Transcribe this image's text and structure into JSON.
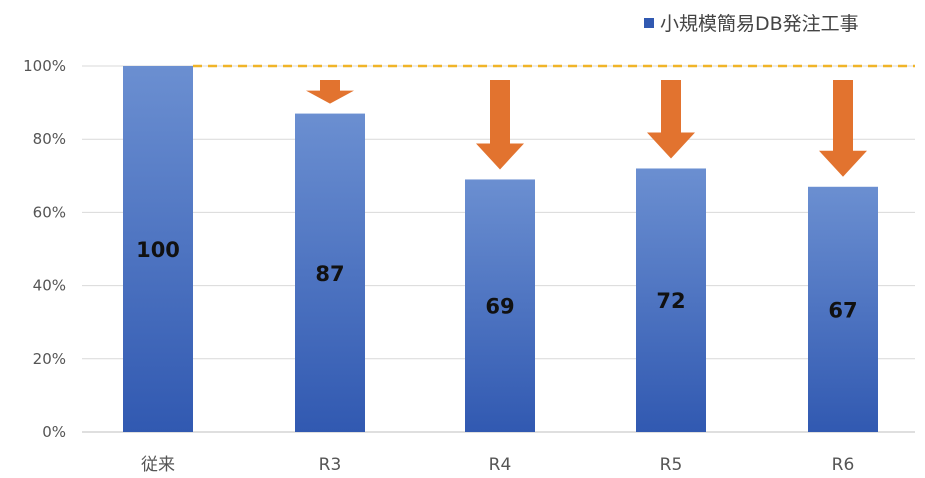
{
  "chart_data": {
    "type": "bar",
    "categories": [
      "従来",
      "R3",
      "R4",
      "R5",
      "R6"
    ],
    "series": [
      {
        "name": "小規模簡易DB発注工事",
        "values": [
          100,
          87,
          69,
          72,
          67
        ]
      }
    ],
    "data_labels": [
      "100",
      "87",
      "69",
      "72",
      "67"
    ],
    "ytick_labels": [
      "0%",
      "20%",
      "40%",
      "60%",
      "80%",
      "100%"
    ],
    "ylim": [
      0,
      100
    ],
    "title": "",
    "xlabel": "",
    "ylabel": "",
    "legend_position": "top-right",
    "grid": true,
    "reference_line": {
      "value": 100,
      "style": "dashed",
      "color": "#f0b429"
    },
    "annotations": "downward arrows above bars R3–R6 indicating decrease",
    "colors": {
      "bar_top": "#6b8fd1",
      "bar_bottom": "#3159b1",
      "arrow": "#e2732f",
      "grid": "#d9d9d9",
      "axis": "#bfbfbf"
    }
  }
}
